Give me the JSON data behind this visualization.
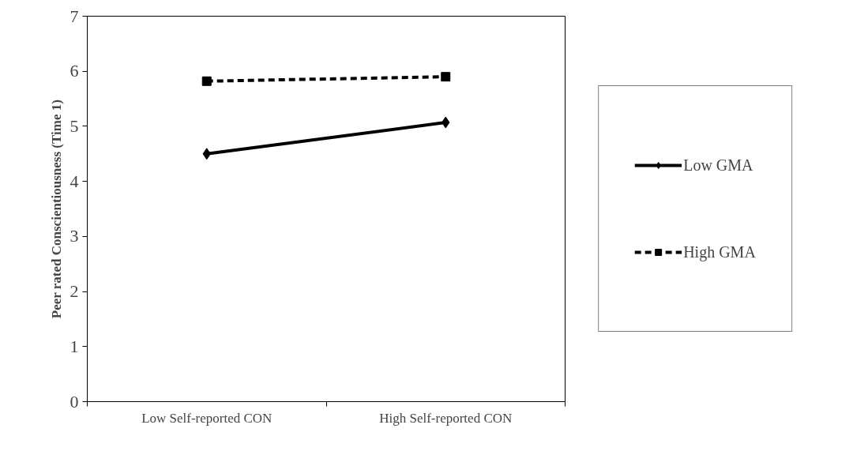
{
  "chart_data": {
    "type": "line",
    "ylabel": "Peer rated Conscientiousness (Time 1)",
    "categories": [
      "Low Self-reported CON",
      "High Self-reported CON"
    ],
    "series": [
      {
        "name": "Low GMA",
        "color": "#000000",
        "values": [
          4.5,
          5.07
        ],
        "marker": "diamond",
        "line_style": "solid"
      },
      {
        "name": "High GMA",
        "color": "#000000",
        "values": [
          5.82,
          5.9
        ],
        "marker": "square",
        "line_style": "dashed"
      }
    ],
    "ylim": [
      0,
      7
    ],
    "yticks": [
      0,
      1,
      2,
      3,
      4,
      5,
      6,
      7
    ],
    "grid": false,
    "legend": "right"
  }
}
